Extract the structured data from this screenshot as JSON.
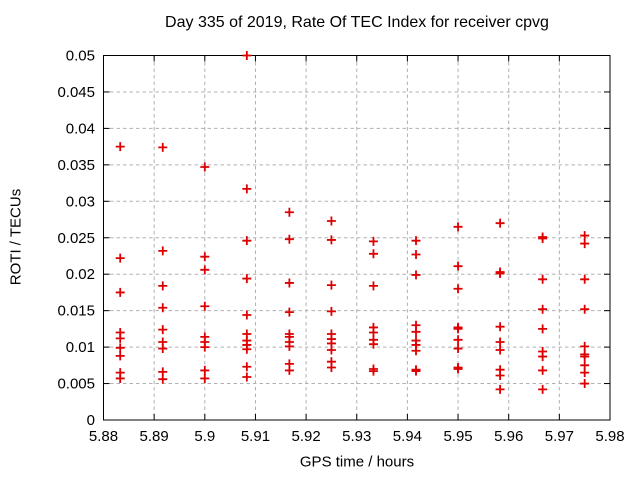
{
  "chart_data": {
    "type": "scatter",
    "title": "Day 335 of 2019, Rate Of TEC Index for receiver cpvg",
    "xlabel": "GPS time / hours",
    "ylabel": "ROTI / TECUs",
    "xlim": [
      5.88,
      5.98
    ],
    "ylim": [
      0,
      0.05
    ],
    "grid": true,
    "legend": "none",
    "marker": "plus",
    "colors": {
      "marker": "#dd0000",
      "grid": "#b0b0b0",
      "frame": "#000000",
      "text": "#000000",
      "background": "#ffffff"
    },
    "xticks": {
      "values": [
        5.88,
        5.89,
        5.9,
        5.91,
        5.92,
        5.93,
        5.94,
        5.95,
        5.96,
        5.97,
        5.98
      ],
      "labels": [
        "5.88",
        "5.89",
        "5.9",
        "5.91",
        "5.92",
        "5.93",
        "5.94",
        "5.95",
        "5.96",
        "5.97",
        "5.98"
      ]
    },
    "yticks": {
      "values": [
        0,
        0.005,
        0.01,
        0.015,
        0.02,
        0.025,
        0.03,
        0.035,
        0.04,
        0.045,
        0.05
      ],
      "labels": [
        "0",
        "0.005",
        "0.01",
        "0.015",
        "0.02",
        "0.025",
        "0.03",
        "0.035",
        "0.04",
        "0.045",
        "0.05"
      ]
    },
    "columns": [
      {
        "t": 5.8833,
        "roti": [
          0.0375,
          0.0222,
          0.0175,
          0.012,
          0.0112,
          0.0099,
          0.0088,
          0.0065,
          0.0057
        ]
      },
      {
        "t": 5.8917,
        "roti": [
          0.0374,
          0.0232,
          0.0184,
          0.0154,
          0.0124,
          0.0107,
          0.0098,
          0.0066,
          0.0056
        ]
      },
      {
        "t": 5.9,
        "roti": [
          0.0347,
          0.0224,
          0.0206,
          0.0156,
          0.0114,
          0.0107,
          0.01,
          0.0068,
          0.0057
        ]
      },
      {
        "t": 5.9083,
        "roti": [
          0.05,
          0.0317,
          0.0246,
          0.0194,
          0.0144,
          0.0118,
          0.0109,
          0.0103,
          0.0097,
          0.0073,
          0.0059
        ]
      },
      {
        "t": 5.9167,
        "roti": [
          0.0285,
          0.0248,
          0.0188,
          0.0148,
          0.0118,
          0.0114,
          0.0107,
          0.0101,
          0.0077,
          0.0068
        ]
      },
      {
        "t": 5.925,
        "roti": [
          0.0273,
          0.0247,
          0.0185,
          0.0149,
          0.0118,
          0.0111,
          0.0105,
          0.0096,
          0.008,
          0.0072
        ]
      },
      {
        "t": 5.9333,
        "roti": [
          0.0245,
          0.0228,
          0.0184,
          0.0127,
          0.012,
          0.011,
          0.0104,
          0.007,
          0.0067
        ]
      },
      {
        "t": 5.9417,
        "roti": [
          0.0246,
          0.0227,
          0.0199,
          0.013,
          0.0121,
          0.0109,
          0.0103,
          0.0095,
          0.0069,
          0.0067
        ]
      },
      {
        "t": 5.95,
        "roti": [
          0.0265,
          0.0211,
          0.018,
          0.0127,
          0.0125,
          0.011,
          0.0098,
          0.0072,
          0.007
        ]
      },
      {
        "t": 5.9583,
        "roti": [
          0.027,
          0.0203,
          0.0201,
          0.0128,
          0.0107,
          0.0096,
          0.0069,
          0.0061,
          0.0042
        ]
      },
      {
        "t": 5.9667,
        "roti": [
          0.0251,
          0.0249,
          0.0193,
          0.0152,
          0.0125,
          0.0094,
          0.0087,
          0.0068,
          0.0042
        ]
      },
      {
        "t": 5.975,
        "roti": [
          0.0253,
          0.0242,
          0.0193,
          0.0152,
          0.0101,
          0.009,
          0.0087,
          0.0075,
          0.0065,
          0.005
        ]
      }
    ]
  }
}
